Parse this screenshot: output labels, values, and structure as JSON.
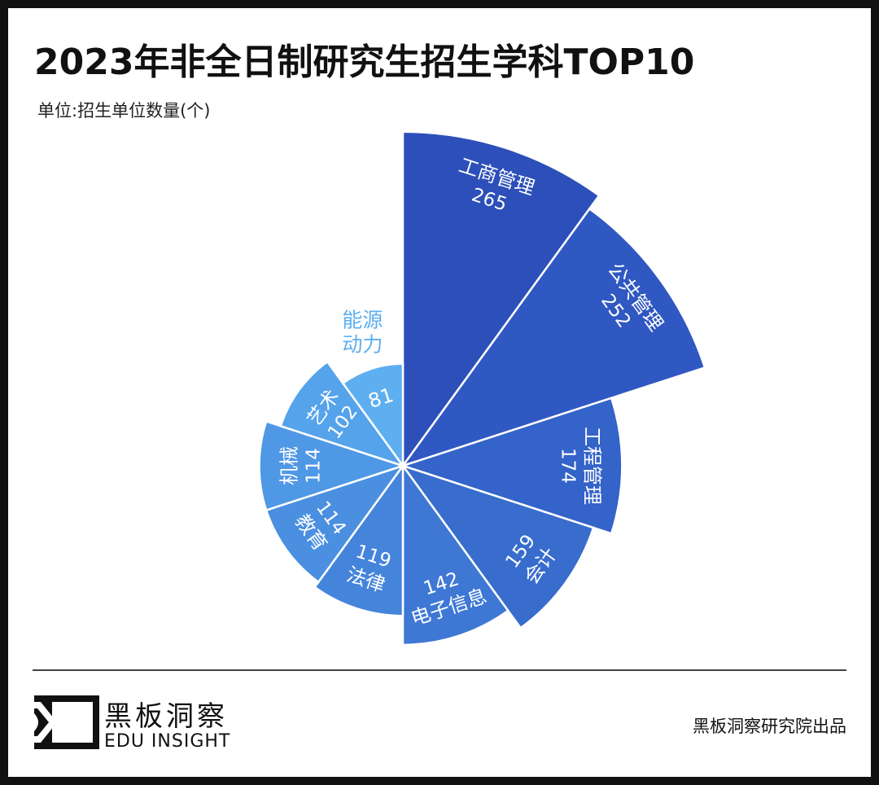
{
  "header": {
    "title": "2023年非全日制研究生招生学科TOP10",
    "unit": "单位:招生单位数量(个)"
  },
  "chart_data": {
    "type": "rose",
    "categories": [
      "工商管理",
      "公共管理",
      "工程管理",
      "会计",
      "电子信息",
      "法律",
      "教育",
      "机械",
      "艺术",
      "能源动力"
    ],
    "values": [
      265,
      252,
      174,
      159,
      142,
      119,
      114,
      114,
      102,
      81
    ],
    "colors": [
      "#2c4fb9",
      "#3058c2",
      "#3463c9",
      "#386ccd",
      "#3e78d4",
      "#4584db",
      "#4a8fe0",
      "#4f98e5",
      "#55a3ea",
      "#5eaff0"
    ]
  },
  "footer": {
    "logo_cn": "黑板洞察",
    "logo_en": "EDU INSIGHT",
    "credit": "黑板洞察研究院出品"
  }
}
